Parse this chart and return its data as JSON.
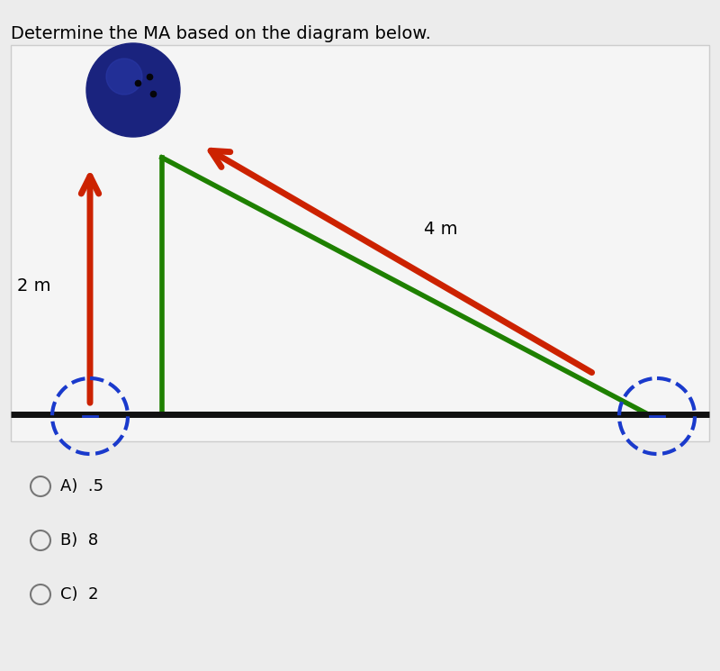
{
  "title": "Determine the MA based on the diagram below.",
  "title_fontsize": 14,
  "bg_color": "#ececec",
  "diagram_bg": "#f5f5f5",
  "options": [
    "A)  .5",
    "B)  8",
    "C)  2"
  ],
  "option_fontsize": 13,
  "label_2m": "2 m",
  "label_4m": "4 m",
  "triangle_color": "#1e8000",
  "ramp_arrow_color": "#cc2200",
  "vertical_arrow_color": "#cc2200",
  "ball_color": "#1a237e",
  "ball_highlight": "#2a3aaa",
  "pulley_color": "#1a3acc",
  "ground_color": "#111111"
}
